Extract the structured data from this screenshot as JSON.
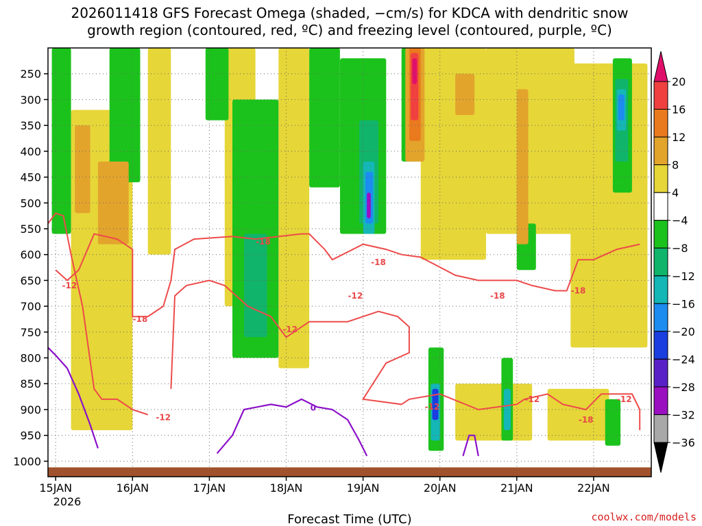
{
  "chart_data": {
    "type": "heatmap",
    "title_lines": [
      "2026011418 GFS Forecast Omega (shaded, −cm/s) for KDCA with dendritic snow",
      "growth region (contoured, red, ºC) and freezing level (contoured, purple, ºC)"
    ],
    "xlabel": "Forecast Time (UTC)",
    "ylabel": "",
    "x_ticks": [
      "15JAN",
      "16JAN",
      "17JAN",
      "18JAN",
      "19JAN",
      "20JAN",
      "21JAN",
      "22JAN"
    ],
    "x_year_label": "2026",
    "x_range_days": [
      -0.1,
      7.75
    ],
    "y_ticks": [
      250,
      300,
      350,
      400,
      450,
      500,
      550,
      600,
      650,
      700,
      750,
      800,
      850,
      900,
      950,
      1000
    ],
    "y_tick_labels": [
      "250",
      "300",
      "350",
      "400",
      "450",
      "500",
      "550",
      "600",
      "650",
      "700",
      "750",
      "800",
      "850",
      "900",
      "950",
      "1000"
    ],
    "y_range_hpa": [
      200,
      1030
    ],
    "credit": "coolwx.com/models",
    "colorbar": {
      "labels": [
        "20",
        "16",
        "12",
        "8",
        "4",
        "−4",
        "−8",
        "−12",
        "−16",
        "−20",
        "−24",
        "−28",
        "−32",
        "−36"
      ],
      "bins": [
        {
          "min": 20,
          "max": null,
          "color": "#e0106a"
        },
        {
          "min": 16,
          "max": 20,
          "color": "#f04040"
        },
        {
          "min": 12,
          "max": 16,
          "color": "#ea7a1e"
        },
        {
          "min": 8,
          "max": 12,
          "color": "#e3a42c"
        },
        {
          "min": 4,
          "max": 8,
          "color": "#e6d638"
        },
        {
          "min": -4,
          "max": 4,
          "color": "#ffffff"
        },
        {
          "min": -8,
          "max": -4,
          "color": "#1cc21c"
        },
        {
          "min": -12,
          "max": -8,
          "color": "#10b46a"
        },
        {
          "min": -16,
          "max": -12,
          "color": "#14b6b6"
        },
        {
          "min": -20,
          "max": -16,
          "color": "#1c8cf0"
        },
        {
          "min": -24,
          "max": -20,
          "color": "#1a3ee0"
        },
        {
          "min": -28,
          "max": -24,
          "color": "#5a20c8"
        },
        {
          "min": -32,
          "max": -28,
          "color": "#9a10c0"
        },
        {
          "min": -36,
          "max": -32,
          "color": "#a8a8a8"
        },
        {
          "min": null,
          "max": -36,
          "color": "#000000"
        }
      ]
    },
    "omega_regions": [
      {
        "name": "yellow-14-17",
        "color": "#e6d638",
        "d0": 0.2,
        "d1": 1.0,
        "p0": 320,
        "p1": 940
      },
      {
        "name": "yellow-15-late",
        "color": "#e6d638",
        "d0": 1.2,
        "d1": 1.5,
        "p0": 200,
        "p1": 600
      },
      {
        "name": "yellow-16",
        "color": "#e6d638",
        "d0": 2.2,
        "d1": 2.6,
        "p0": 200,
        "p1": 700
      },
      {
        "name": "yellow-17",
        "color": "#e6d638",
        "d0": 2.9,
        "d1": 3.3,
        "p0": 200,
        "p1": 820
      },
      {
        "name": "yellow-19-20",
        "color": "#e6d638",
        "d0": 4.75,
        "d1": 5.6,
        "p0": 200,
        "p1": 610
      },
      {
        "name": "yellow-20-21",
        "color": "#e6d638",
        "d0": 5.6,
        "d1": 6.75,
        "p0": 200,
        "p1": 560
      },
      {
        "name": "yellow-21-22",
        "color": "#e6d638",
        "d0": 6.7,
        "d1": 7.7,
        "p0": 230,
        "p1": 780
      },
      {
        "name": "yellow-low-20",
        "color": "#e6d638",
        "d0": 5.2,
        "d1": 6.2,
        "p0": 850,
        "p1": 960
      },
      {
        "name": "yellow-low-21",
        "color": "#e6d638",
        "d0": 6.4,
        "d1": 7.2,
        "p0": 860,
        "p1": 960
      },
      {
        "name": "green-14",
        "color": "#1cc21c",
        "d0": -0.05,
        "d1": 0.2,
        "p0": 200,
        "p1": 560
      },
      {
        "name": "green-15",
        "color": "#1cc21c",
        "d0": 0.7,
        "d1": 1.1,
        "p0": 200,
        "p1": 460
      },
      {
        "name": "green-16-17",
        "color": "#1cc21c",
        "d0": 1.95,
        "d1": 2.25,
        "p0": 200,
        "p1": 340
      },
      {
        "name": "green-17",
        "color": "#1cc21c",
        "d0": 2.3,
        "d1": 2.9,
        "p0": 300,
        "p1": 800
      },
      {
        "name": "green-17-18",
        "color": "#1cc21c",
        "d0": 3.3,
        "d1": 3.7,
        "p0": 200,
        "p1": 470
      },
      {
        "name": "green-18",
        "color": "#1cc21c",
        "d0": 3.7,
        "d1": 4.3,
        "p0": 220,
        "p1": 560
      },
      {
        "name": "green-19",
        "color": "#1cc21c",
        "d0": 4.5,
        "d1": 4.75,
        "p0": 200,
        "p1": 420
      },
      {
        "name": "green-21",
        "color": "#1cc21c",
        "d0": 6.0,
        "d1": 6.25,
        "p0": 540,
        "p1": 630
      },
      {
        "name": "green-22",
        "color": "#1cc21c",
        "d0": 7.25,
        "d1": 7.5,
        "p0": 220,
        "p1": 480
      },
      {
        "name": "green-low-20",
        "color": "#1cc21c",
        "d0": 4.85,
        "d1": 5.05,
        "p0": 780,
        "p1": 980
      },
      {
        "name": "green-low-21",
        "color": "#1cc21c",
        "d0": 5.8,
        "d1": 5.95,
        "p0": 800,
        "p1": 960
      },
      {
        "name": "green-low-22",
        "color": "#1cc21c",
        "d0": 7.15,
        "d1": 7.35,
        "p0": 880,
        "p1": 970
      },
      {
        "name": "teal-17",
        "color": "#10b46a",
        "d0": 2.45,
        "d1": 2.75,
        "p0": 560,
        "p1": 760
      },
      {
        "name": "teal-18",
        "color": "#10b46a",
        "d0": 3.95,
        "d1": 4.2,
        "p0": 340,
        "p1": 540
      },
      {
        "name": "teal-22",
        "color": "#10b46a",
        "d0": 7.28,
        "d1": 7.45,
        "p0": 260,
        "p1": 420
      },
      {
        "name": "orange-15",
        "color": "#e3a42c",
        "d0": 0.55,
        "d1": 0.95,
        "p0": 420,
        "p1": 580
      },
      {
        "name": "orange-14",
        "color": "#e3a42c",
        "d0": 0.25,
        "d1": 0.45,
        "p0": 350,
        "p1": 520
      },
      {
        "name": "orange-21",
        "color": "#e3a42c",
        "d0": 6.0,
        "d1": 6.15,
        "p0": 280,
        "p1": 580
      },
      {
        "name": "orange-20",
        "color": "#e3a42c",
        "d0": 5.2,
        "d1": 5.45,
        "p0": 250,
        "p1": 330
      },
      {
        "name": "orange-19-20",
        "color": "#e3a42c",
        "d0": 4.55,
        "d1": 4.8,
        "p0": 200,
        "p1": 420
      },
      {
        "name": "red-orange-19-20",
        "color": "#ea7a1e",
        "d0": 4.6,
        "d1": 4.75,
        "p0": 200,
        "p1": 380
      },
      {
        "name": "red-19-20",
        "color": "#f04040",
        "d0": 4.62,
        "d1": 4.72,
        "p0": 210,
        "p1": 340
      },
      {
        "name": "magenta-19-20",
        "color": "#e0106a",
        "d0": 4.64,
        "d1": 4.7,
        "p0": 220,
        "p1": 270
      },
      {
        "name": "cyan-18",
        "color": "#14b6b6",
        "d0": 4.0,
        "d1": 4.15,
        "p0": 420,
        "p1": 560
      },
      {
        "name": "blue-18",
        "color": "#1c8cf0",
        "d0": 4.03,
        "d1": 4.13,
        "p0": 440,
        "p1": 540
      },
      {
        "name": "purple-18",
        "color": "#9a10c0",
        "d0": 4.05,
        "d1": 4.1,
        "p0": 480,
        "p1": 530
      },
      {
        "name": "cyan-22",
        "color": "#14b6b6",
        "d0": 7.3,
        "d1": 7.42,
        "p0": 280,
        "p1": 360
      },
      {
        "name": "blue-22",
        "color": "#1c8cf0",
        "d0": 7.32,
        "d1": 7.4,
        "p0": 290,
        "p1": 340
      },
      {
        "name": "cyan-low-20",
        "color": "#14b6b6",
        "d0": 4.88,
        "d1": 5.0,
        "p0": 850,
        "p1": 960
      },
      {
        "name": "blue-low-20",
        "color": "#1a3ee0",
        "d0": 4.9,
        "d1": 4.98,
        "p0": 860,
        "p1": 920
      },
      {
        "name": "cyan-low-21",
        "color": "#14b6b6",
        "d0": 5.83,
        "d1": 5.92,
        "p0": 860,
        "p1": 940
      }
    ],
    "dendritic_contours": [
      {
        "level": -12,
        "points": [
          [
            -0.1,
            540
          ],
          [
            0.0,
            520
          ],
          [
            0.1,
            525
          ],
          [
            0.2,
            600
          ],
          [
            0.35,
            700
          ],
          [
            0.5,
            860
          ],
          [
            0.6,
            880
          ],
          [
            0.8,
            880
          ],
          [
            1.0,
            900
          ],
          [
            1.2,
            910
          ]
        ]
      },
      {
        "level": -18,
        "points": [
          [
            0.0,
            630
          ],
          [
            0.15,
            650
          ],
          [
            0.3,
            630
          ],
          [
            0.5,
            560
          ],
          [
            0.8,
            570
          ],
          [
            1.0,
            590
          ],
          [
            1.0,
            720
          ],
          [
            1.2,
            720
          ],
          [
            1.4,
            700
          ],
          [
            1.5,
            650
          ],
          [
            1.55,
            590
          ],
          [
            1.8,
            570
          ],
          [
            2.3,
            565
          ],
          [
            2.6,
            570
          ],
          [
            3.2,
            560
          ],
          [
            3.3,
            560
          ],
          [
            3.5,
            590
          ],
          [
            3.6,
            610
          ],
          [
            4.0,
            580
          ],
          [
            4.3,
            590
          ],
          [
            4.5,
            600
          ],
          [
            4.75,
            605
          ],
          [
            5.2,
            640
          ],
          [
            5.5,
            650
          ],
          [
            6.0,
            650
          ],
          [
            6.2,
            660
          ],
          [
            6.5,
            670
          ],
          [
            6.65,
            670
          ],
          [
            6.8,
            610
          ],
          [
            7.0,
            610
          ],
          [
            7.3,
            590
          ],
          [
            7.6,
            580
          ]
        ]
      },
      {
        "level": -12,
        "points": [
          [
            1.5,
            860
          ],
          [
            1.55,
            680
          ],
          [
            1.7,
            660
          ],
          [
            2.0,
            650
          ],
          [
            2.2,
            660
          ],
          [
            2.5,
            700
          ],
          [
            2.8,
            720
          ],
          [
            2.9,
            740
          ],
          [
            3.0,
            760
          ],
          [
            3.3,
            730
          ],
          [
            3.8,
            730
          ],
          [
            4.2,
            710
          ],
          [
            4.45,
            720
          ],
          [
            4.6,
            740
          ],
          [
            4.6,
            790
          ],
          [
            4.3,
            810
          ],
          [
            4.0,
            880
          ],
          [
            4.5,
            890
          ],
          [
            4.6,
            880
          ],
          [
            5.0,
            870
          ],
          [
            5.5,
            900
          ],
          [
            6.0,
            890
          ],
          [
            6.1,
            880
          ],
          [
            6.4,
            870
          ],
          [
            6.6,
            890
          ],
          [
            6.9,
            900
          ],
          [
            7.1,
            870
          ],
          [
            7.5,
            870
          ],
          [
            7.6,
            900
          ],
          [
            7.6,
            940
          ]
        ]
      }
    ],
    "contour_labels": [
      {
        "text": "-12",
        "d": 0.18,
        "p": 660
      },
      {
        "text": "-18",
        "d": 1.1,
        "p": 725
      },
      {
        "text": "-12",
        "d": 1.4,
        "p": 915
      },
      {
        "text": "-18",
        "d": 2.7,
        "p": 575
      },
      {
        "text": "-12",
        "d": 3.05,
        "p": 745
      },
      {
        "text": "-12",
        "d": 3.9,
        "p": 680
      },
      {
        "text": "-18",
        "d": 4.2,
        "p": 615
      },
      {
        "text": "-12",
        "d": 4.9,
        "p": 895
      },
      {
        "text": "-18",
        "d": 5.75,
        "p": 680
      },
      {
        "text": "-12",
        "d": 6.2,
        "p": 880
      },
      {
        "text": "-18",
        "d": 6.8,
        "p": 670
      },
      {
        "text": "-18",
        "d": 6.9,
        "p": 920
      },
      {
        "text": "-12",
        "d": 7.4,
        "p": 880
      }
    ],
    "freezing_contours": [
      {
        "level": 0,
        "points": [
          [
            -0.1,
            780
          ],
          [
            0.0,
            795
          ],
          [
            0.15,
            820
          ],
          [
            0.3,
            870
          ],
          [
            0.45,
            930
          ],
          [
            0.55,
            975
          ]
        ]
      },
      {
        "level": 0,
        "points": [
          [
            2.1,
            985
          ],
          [
            2.3,
            950
          ],
          [
            2.45,
            900
          ],
          [
            2.8,
            890
          ],
          [
            3.0,
            895
          ],
          [
            3.2,
            880
          ],
          [
            3.4,
            895
          ],
          [
            3.6,
            900
          ],
          [
            3.8,
            920
          ],
          [
            3.95,
            960
          ],
          [
            4.05,
            990
          ]
        ]
      },
      {
        "level": 0,
        "points": [
          [
            5.3,
            990
          ],
          [
            5.38,
            950
          ],
          [
            5.45,
            950
          ],
          [
            5.5,
            990
          ]
        ]
      }
    ],
    "freezing_labels": [
      {
        "text": "0",
        "d": 3.35,
        "p": 897
      }
    ],
    "terrain_top_hpa": 1012
  }
}
